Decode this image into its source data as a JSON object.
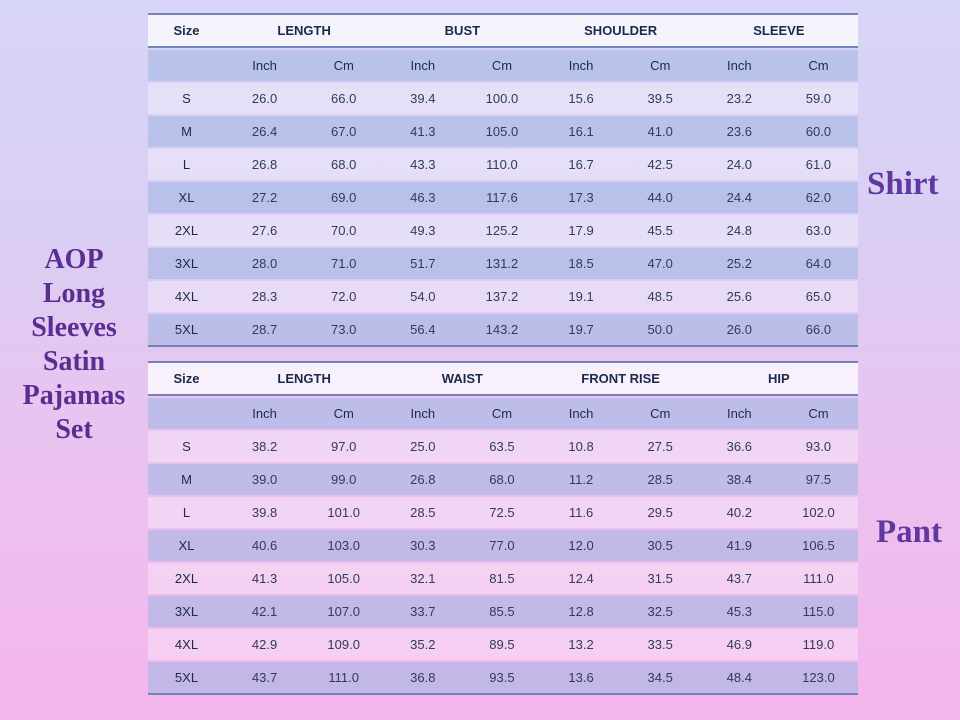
{
  "title": {
    "lines": [
      "AOP",
      "Long",
      "Sleeves",
      "Satin",
      "Pajamas",
      "Set"
    ]
  },
  "labels": {
    "shirt": "Shirt",
    "pant": "Pant"
  },
  "colors": {
    "background_top": "#D7D5F7",
    "background_bottom": "#F4B5EC",
    "table_border": "#7283BC",
    "header_row_bg": "#E9EFF9",
    "blue_row_tint": "#C2CBE8",
    "light_row_tint": "#E3E2F9",
    "header_text": "#1B2A4A",
    "data_text": "#2E3C59",
    "title_purple": "#5B2D90",
    "label_purple": "#6138A0"
  },
  "tables": [
    {
      "name": "shirt",
      "header": [
        "Size",
        "LENGTH",
        "BUST",
        "SHOULDER",
        "SLEEVE"
      ],
      "units_row": [
        "",
        "Inch",
        "Cm",
        "Inch",
        "Cm",
        "Inch",
        "Cm",
        "Inch",
        "Cm"
      ],
      "rows": [
        [
          "S",
          "26.0",
          "66.0",
          "39.4",
          "100.0",
          "15.6",
          "39.5",
          "23.2",
          "59.0"
        ],
        [
          "M",
          "26.4",
          "67.0",
          "41.3",
          "105.0",
          "16.1",
          "41.0",
          "23.6",
          "60.0"
        ],
        [
          "L",
          "26.8",
          "68.0",
          "43.3",
          "110.0",
          "16.7",
          "42.5",
          "24.0",
          "61.0"
        ],
        [
          "XL",
          "27.2",
          "69.0",
          "46.3",
          "117.6",
          "17.3",
          "44.0",
          "24.4",
          "62.0"
        ],
        [
          "2XL",
          "27.6",
          "70.0",
          "49.3",
          "125.2",
          "17.9",
          "45.5",
          "24.8",
          "63.0"
        ],
        [
          "3XL",
          "28.0",
          "71.0",
          "51.7",
          "131.2",
          "18.5",
          "47.0",
          "25.2",
          "64.0"
        ],
        [
          "4XL",
          "28.3",
          "72.0",
          "54.0",
          "137.2",
          "19.1",
          "48.5",
          "25.6",
          "65.0"
        ],
        [
          "5XL",
          "28.7",
          "73.0",
          "56.4",
          "143.2",
          "19.7",
          "50.0",
          "26.0",
          "66.0"
        ]
      ]
    },
    {
      "name": "pant",
      "header": [
        "Size",
        "LENGTH",
        "WAIST",
        "FRONT RISE",
        "HIP"
      ],
      "units_row": [
        "",
        "Inch",
        "Cm",
        "Inch",
        "Cm",
        "Inch",
        "Cm",
        "Inch",
        "Cm"
      ],
      "rows": [
        [
          "S",
          "38.2",
          "97.0",
          "25.0",
          "63.5",
          "10.8",
          "27.5",
          "36.6",
          "93.0"
        ],
        [
          "M",
          "39.0",
          "99.0",
          "26.8",
          "68.0",
          "11.2",
          "28.5",
          "38.4",
          "97.5"
        ],
        [
          "L",
          "39.8",
          "101.0",
          "28.5",
          "72.5",
          "11.6",
          "29.5",
          "40.2",
          "102.0"
        ],
        [
          "XL",
          "40.6",
          "103.0",
          "30.3",
          "77.0",
          "12.0",
          "30.5",
          "41.9",
          "106.5"
        ],
        [
          "2XL",
          "41.3",
          "105.0",
          "32.1",
          "81.5",
          "12.4",
          "31.5",
          "43.7",
          "111.0"
        ],
        [
          "3XL",
          "42.1",
          "107.0",
          "33.7",
          "85.5",
          "12.8",
          "32.5",
          "45.3",
          "115.0"
        ],
        [
          "4XL",
          "42.9",
          "109.0",
          "35.2",
          "89.5",
          "13.2",
          "33.5",
          "46.9",
          "119.0"
        ],
        [
          "5XL",
          "43.7",
          "111.0",
          "36.8",
          "93.5",
          "13.6",
          "34.5",
          "48.4",
          "123.0"
        ]
      ]
    }
  ]
}
